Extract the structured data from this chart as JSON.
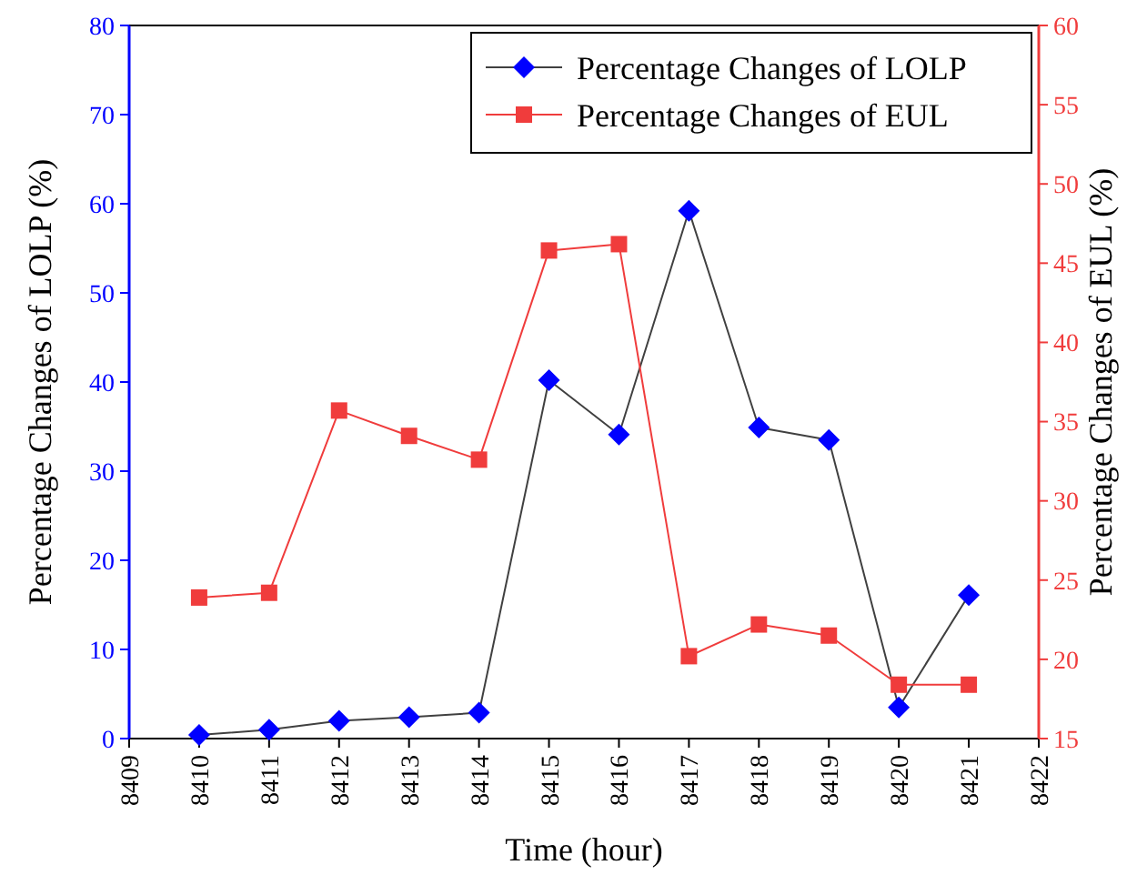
{
  "chart_data": {
    "type": "line",
    "xlabel": "Time (hour)",
    "ylabel": "Percentage Changes of LOLP (%)",
    "y2label": "Percentage Changes of EUL (%)",
    "x": [
      8410,
      8411,
      8412,
      8413,
      8414,
      8415,
      8416,
      8417,
      8418,
      8419,
      8420,
      8421
    ],
    "series": [
      {
        "name": "Percentage Changes of LOLP",
        "color": "#0000ff",
        "marker": "diamond",
        "values": [
          0.4,
          1.0,
          2.0,
          2.4,
          2.9,
          40.2,
          34.1,
          59.2,
          34.9,
          33.5,
          3.5,
          16.1
        ]
      },
      {
        "name": "Percentage Changes of EUL",
        "color": "#f03c3c",
        "marker": "square",
        "axis": "y2",
        "values": [
          23.9,
          24.2,
          35.7,
          34.1,
          32.6,
          45.8,
          46.2,
          20.2,
          22.2,
          21.5,
          18.4,
          18.4
        ]
      }
    ],
    "xlim": [
      8409,
      8422
    ],
    "xticks": [
      8409,
      8410,
      8411,
      8412,
      8413,
      8414,
      8415,
      8416,
      8417,
      8418,
      8419,
      8420,
      8421,
      8422
    ],
    "ylim": [
      0,
      80
    ],
    "yticks": [
      0,
      10,
      20,
      30,
      40,
      50,
      60,
      70,
      80
    ],
    "y2lim": [
      15,
      60
    ],
    "y2ticks": [
      15,
      20,
      25,
      30,
      35,
      40,
      45,
      50,
      55,
      60
    ],
    "legend": "top right",
    "grid": false,
    "line_style": "solid"
  }
}
